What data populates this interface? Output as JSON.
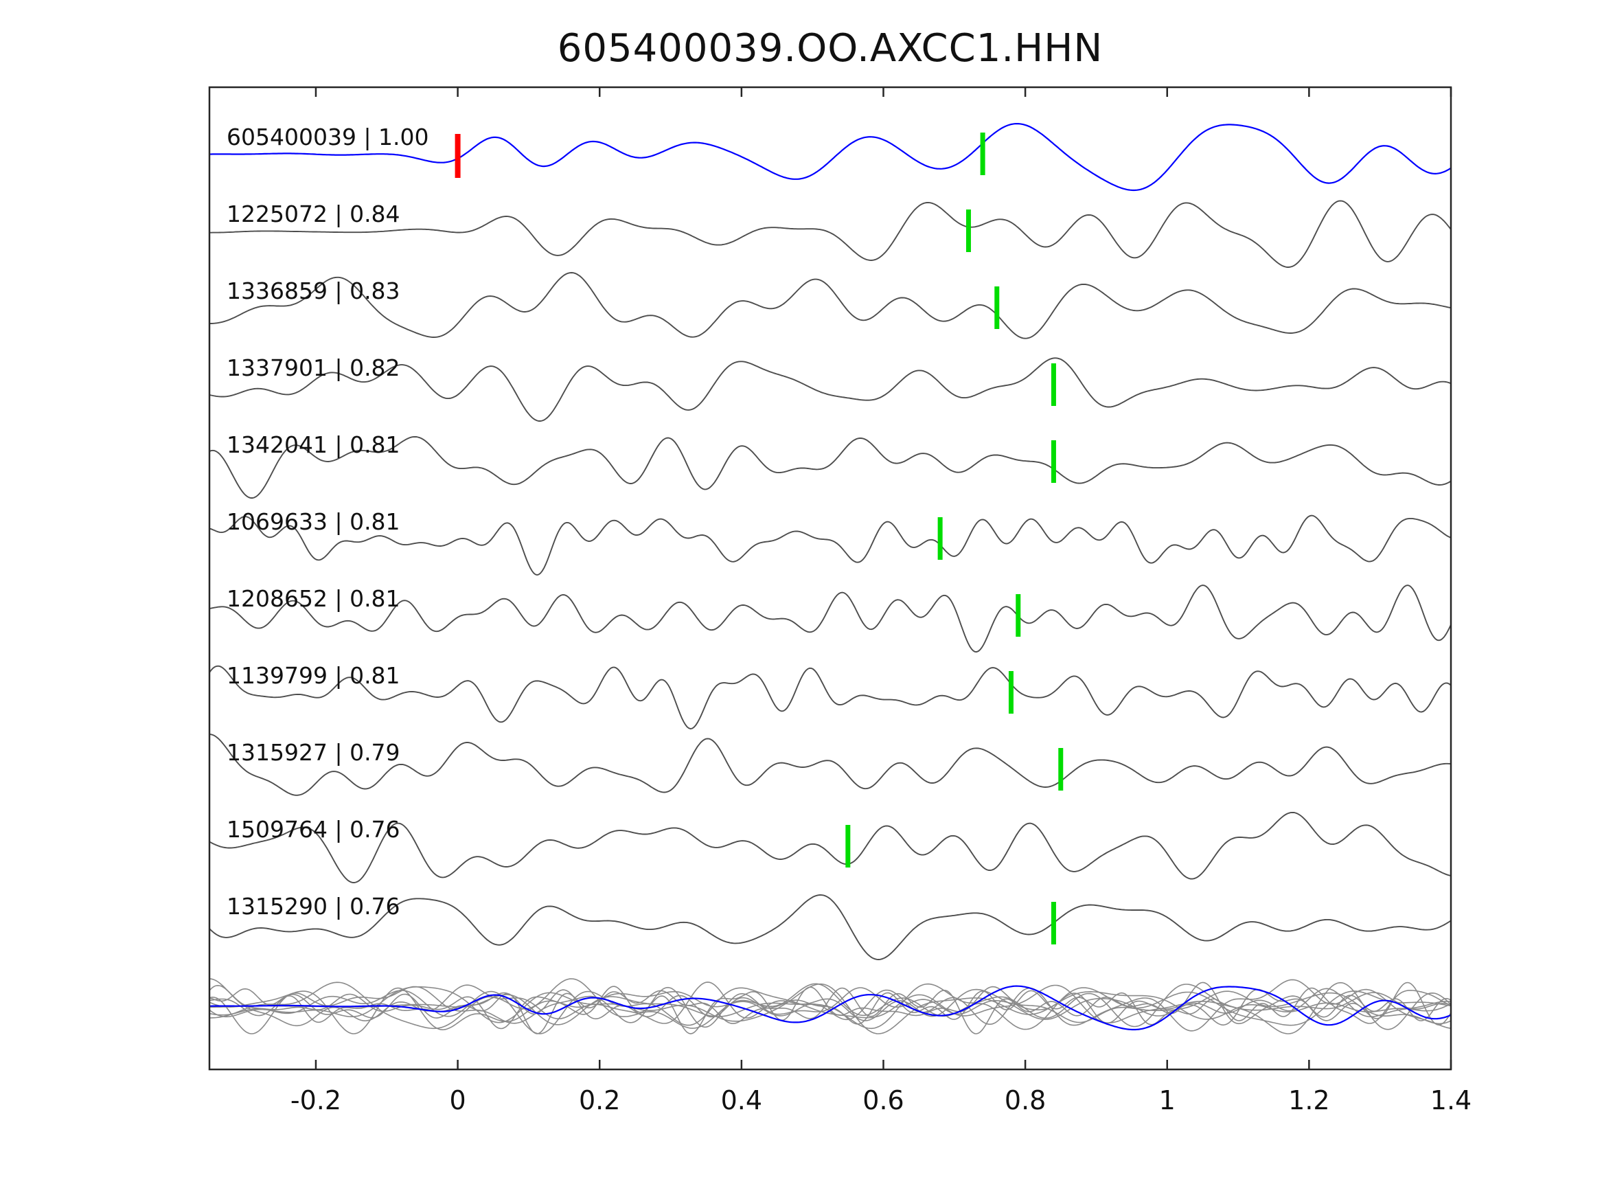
{
  "title": "605400039.OO.AXCC1.HHN",
  "colors": {
    "template_trace": "#0000ff",
    "candidate_trace": "#4d4d4d",
    "pick_marker": "#00dd00",
    "origin_marker": "#ff0000",
    "overlay_trace": "#8a8a8a",
    "axis": "#262626",
    "text": "#111111",
    "background": "#ffffff"
  },
  "axis": {
    "x_range": [
      -0.35,
      1.4
    ],
    "x_ticks": [
      -0.2,
      0,
      0.2,
      0.4,
      0.6,
      0.8,
      1,
      1.2,
      1.4
    ],
    "x_tick_labels": [
      "-0.2",
      "0",
      "0.2",
      "0.4",
      "0.6",
      "0.8",
      "1",
      "1.2",
      "1.4"
    ]
  },
  "chart_data": {
    "type": "line",
    "title": "605400039.OO.AXCC1.HHN",
    "description": "Stacked seismic waveform traces with cross-correlation values; green bars mark pick times, red bar marks template origin at t=0; bottom row overlays all traces (gray) with the template (blue).",
    "x_range": [
      -0.35,
      1.4
    ],
    "legend_position": "none",
    "grid": false,
    "traces": [
      {
        "id": "605400039",
        "corr": "1.00",
        "label": "605400039 | 1.00",
        "pick_x": 0.74,
        "origin_x": 0.0,
        "role": "template",
        "freq_hint": 7,
        "onset": 0.03
      },
      {
        "id": "1225072",
        "corr": "0.84",
        "label": "1225072 | 0.84",
        "pick_x": 0.72,
        "role": "candidate",
        "freq_hint": 8,
        "onset": 0.05
      },
      {
        "id": "1336859",
        "corr": "0.83",
        "label": "1336859 | 0.83",
        "pick_x": 0.76,
        "role": "candidate",
        "freq_hint": 9,
        "onset": null
      },
      {
        "id": "1337901",
        "corr": "0.82",
        "label": "1337901 | 0.82",
        "pick_x": 0.84,
        "role": "candidate",
        "freq_hint": 10,
        "onset": null
      },
      {
        "id": "1342041",
        "corr": "0.81",
        "label": "1342041 | 0.81",
        "pick_x": 0.84,
        "role": "candidate",
        "freq_hint": 11,
        "onset": null
      },
      {
        "id": "1069633",
        "corr": "0.81",
        "label": "1069633 | 0.81",
        "pick_x": 0.68,
        "role": "candidate",
        "freq_hint": 16,
        "onset": null
      },
      {
        "id": "1208652",
        "corr": "0.81",
        "label": "1208652 | 0.81",
        "pick_x": 0.79,
        "role": "candidate",
        "freq_hint": 14,
        "onset": null
      },
      {
        "id": "1139799",
        "corr": "0.81",
        "label": "1139799 | 0.81",
        "pick_x": 0.78,
        "role": "candidate",
        "freq_hint": 15,
        "onset": null
      },
      {
        "id": "1315927",
        "corr": "0.79",
        "label": "1315927 | 0.79",
        "pick_x": 0.85,
        "role": "candidate",
        "freq_hint": 11,
        "onset": null
      },
      {
        "id": "1509764",
        "corr": "0.76",
        "label": "1509764 | 0.76",
        "pick_x": 0.55,
        "role": "candidate",
        "freq_hint": 10,
        "onset": null
      },
      {
        "id": "1315290",
        "corr": "0.76",
        "label": "1315290 | 0.76",
        "pick_x": 0.84,
        "role": "candidate",
        "freq_hint": 9,
        "onset": null
      }
    ],
    "overlay_row": {
      "description": "All candidate traces overlaid in gray with the blue template on top",
      "includes_template": true
    }
  }
}
